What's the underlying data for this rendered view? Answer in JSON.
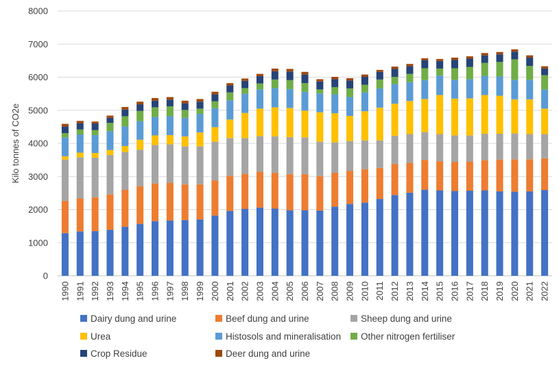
{
  "chart_data": {
    "type": "bar",
    "stacked": true,
    "title": "",
    "xlabel": "",
    "ylabel": "Kilo tonnes of CO2e",
    "ylim": [
      0,
      8000
    ],
    "yticks": [
      0,
      1000,
      2000,
      3000,
      4000,
      5000,
      6000,
      7000,
      8000
    ],
    "grid": true,
    "legend_position": "bottom",
    "categories": [
      "1990",
      "1991",
      "1992",
      "1993",
      "1994",
      "1995",
      "1996",
      "1997",
      "1998",
      "1999",
      "2000",
      "2001",
      "2002",
      "2003",
      "2004",
      "2005",
      "2006",
      "2007",
      "2008",
      "2009",
      "2010",
      "2011",
      "2012",
      "2013",
      "2014",
      "2015",
      "2016",
      "2017",
      "2018",
      "2019",
      "2020",
      "2021",
      "2022"
    ],
    "series": [
      {
        "name": "Dairy dung and urine",
        "color": "#4472C4",
        "values": [
          1290,
          1340,
          1350,
          1390,
          1480,
          1570,
          1650,
          1670,
          1680,
          1700,
          1820,
          1960,
          2020,
          2060,
          2030,
          1980,
          1980,
          1970,
          2090,
          2170,
          2210,
          2320,
          2440,
          2510,
          2600,
          2580,
          2560,
          2570,
          2580,
          2550,
          2540,
          2550,
          2590
        ]
      },
      {
        "name": "Beef dung and urine",
        "color": "#ED7D31",
        "values": [
          970,
          1000,
          1020,
          1070,
          1120,
          1140,
          1140,
          1140,
          1080,
          1060,
          1060,
          1060,
          1060,
          1080,
          1080,
          1090,
          1090,
          1040,
          1020,
          1000,
          1010,
          940,
          940,
          900,
          900,
          880,
          880,
          880,
          910,
          960,
          980,
          970,
          960
        ]
      },
      {
        "name": "Sheep dung and urine",
        "color": "#A5A5A5",
        "values": [
          1250,
          1240,
          1200,
          1190,
          1140,
          1100,
          1160,
          1160,
          1150,
          1150,
          1170,
          1140,
          1080,
          1080,
          1100,
          1120,
          1110,
          1040,
          920,
          900,
          870,
          830,
          850,
          870,
          840,
          820,
          800,
          790,
          800,
          780,
          780,
          760,
          730
        ]
      },
      {
        "name": "Urea",
        "color": "#FFC000",
        "values": [
          100,
          140,
          140,
          150,
          180,
          300,
          290,
          280,
          300,
          420,
          440,
          560,
          760,
          830,
          880,
          880,
          810,
          890,
          880,
          760,
          880,
          990,
          970,
          1000,
          1000,
          1180,
          1110,
          1120,
          1170,
          1150,
          1030,
          1050,
          770
        ]
      },
      {
        "name": "Histosols and mineralisation",
        "color": "#5B9BD5",
        "values": [
          570,
          550,
          540,
          570,
          590,
          560,
          560,
          570,
          560,
          560,
          570,
          580,
          580,
          580,
          580,
          570,
          570,
          570,
          570,
          570,
          570,
          580,
          590,
          570,
          570,
          590,
          570,
          580,
          580,
          580,
          590,
          590,
          580
        ]
      },
      {
        "name": "Other nitrogen fertiliser",
        "color": "#70AD47",
        "values": [
          130,
          150,
          150,
          250,
          310,
          310,
          290,
          300,
          240,
          160,
          210,
          240,
          170,
          180,
          260,
          270,
          260,
          120,
          220,
          260,
          230,
          270,
          220,
          250,
          360,
          210,
          350,
          370,
          390,
          440,
          620,
          420,
          430
        ]
      },
      {
        "name": "Crop Residue",
        "color": "#264478",
        "values": [
          200,
          190,
          200,
          150,
          200,
          200,
          200,
          200,
          200,
          210,
          210,
          210,
          220,
          220,
          250,
          260,
          260,
          240,
          240,
          240,
          240,
          230,
          240,
          230,
          240,
          230,
          250,
          250,
          230,
          230,
          230,
          250,
          200
        ]
      },
      {
        "name": "Deer dung and urine",
        "color": "#9E480E",
        "values": [
          80,
          70,
          60,
          70,
          80,
          80,
          80,
          80,
          80,
          80,
          80,
          70,
          70,
          70,
          80,
          80,
          80,
          70,
          70,
          70,
          70,
          60,
          70,
          70,
          60,
          60,
          70,
          70,
          70,
          70,
          70,
          70,
          70
        ]
      }
    ]
  }
}
